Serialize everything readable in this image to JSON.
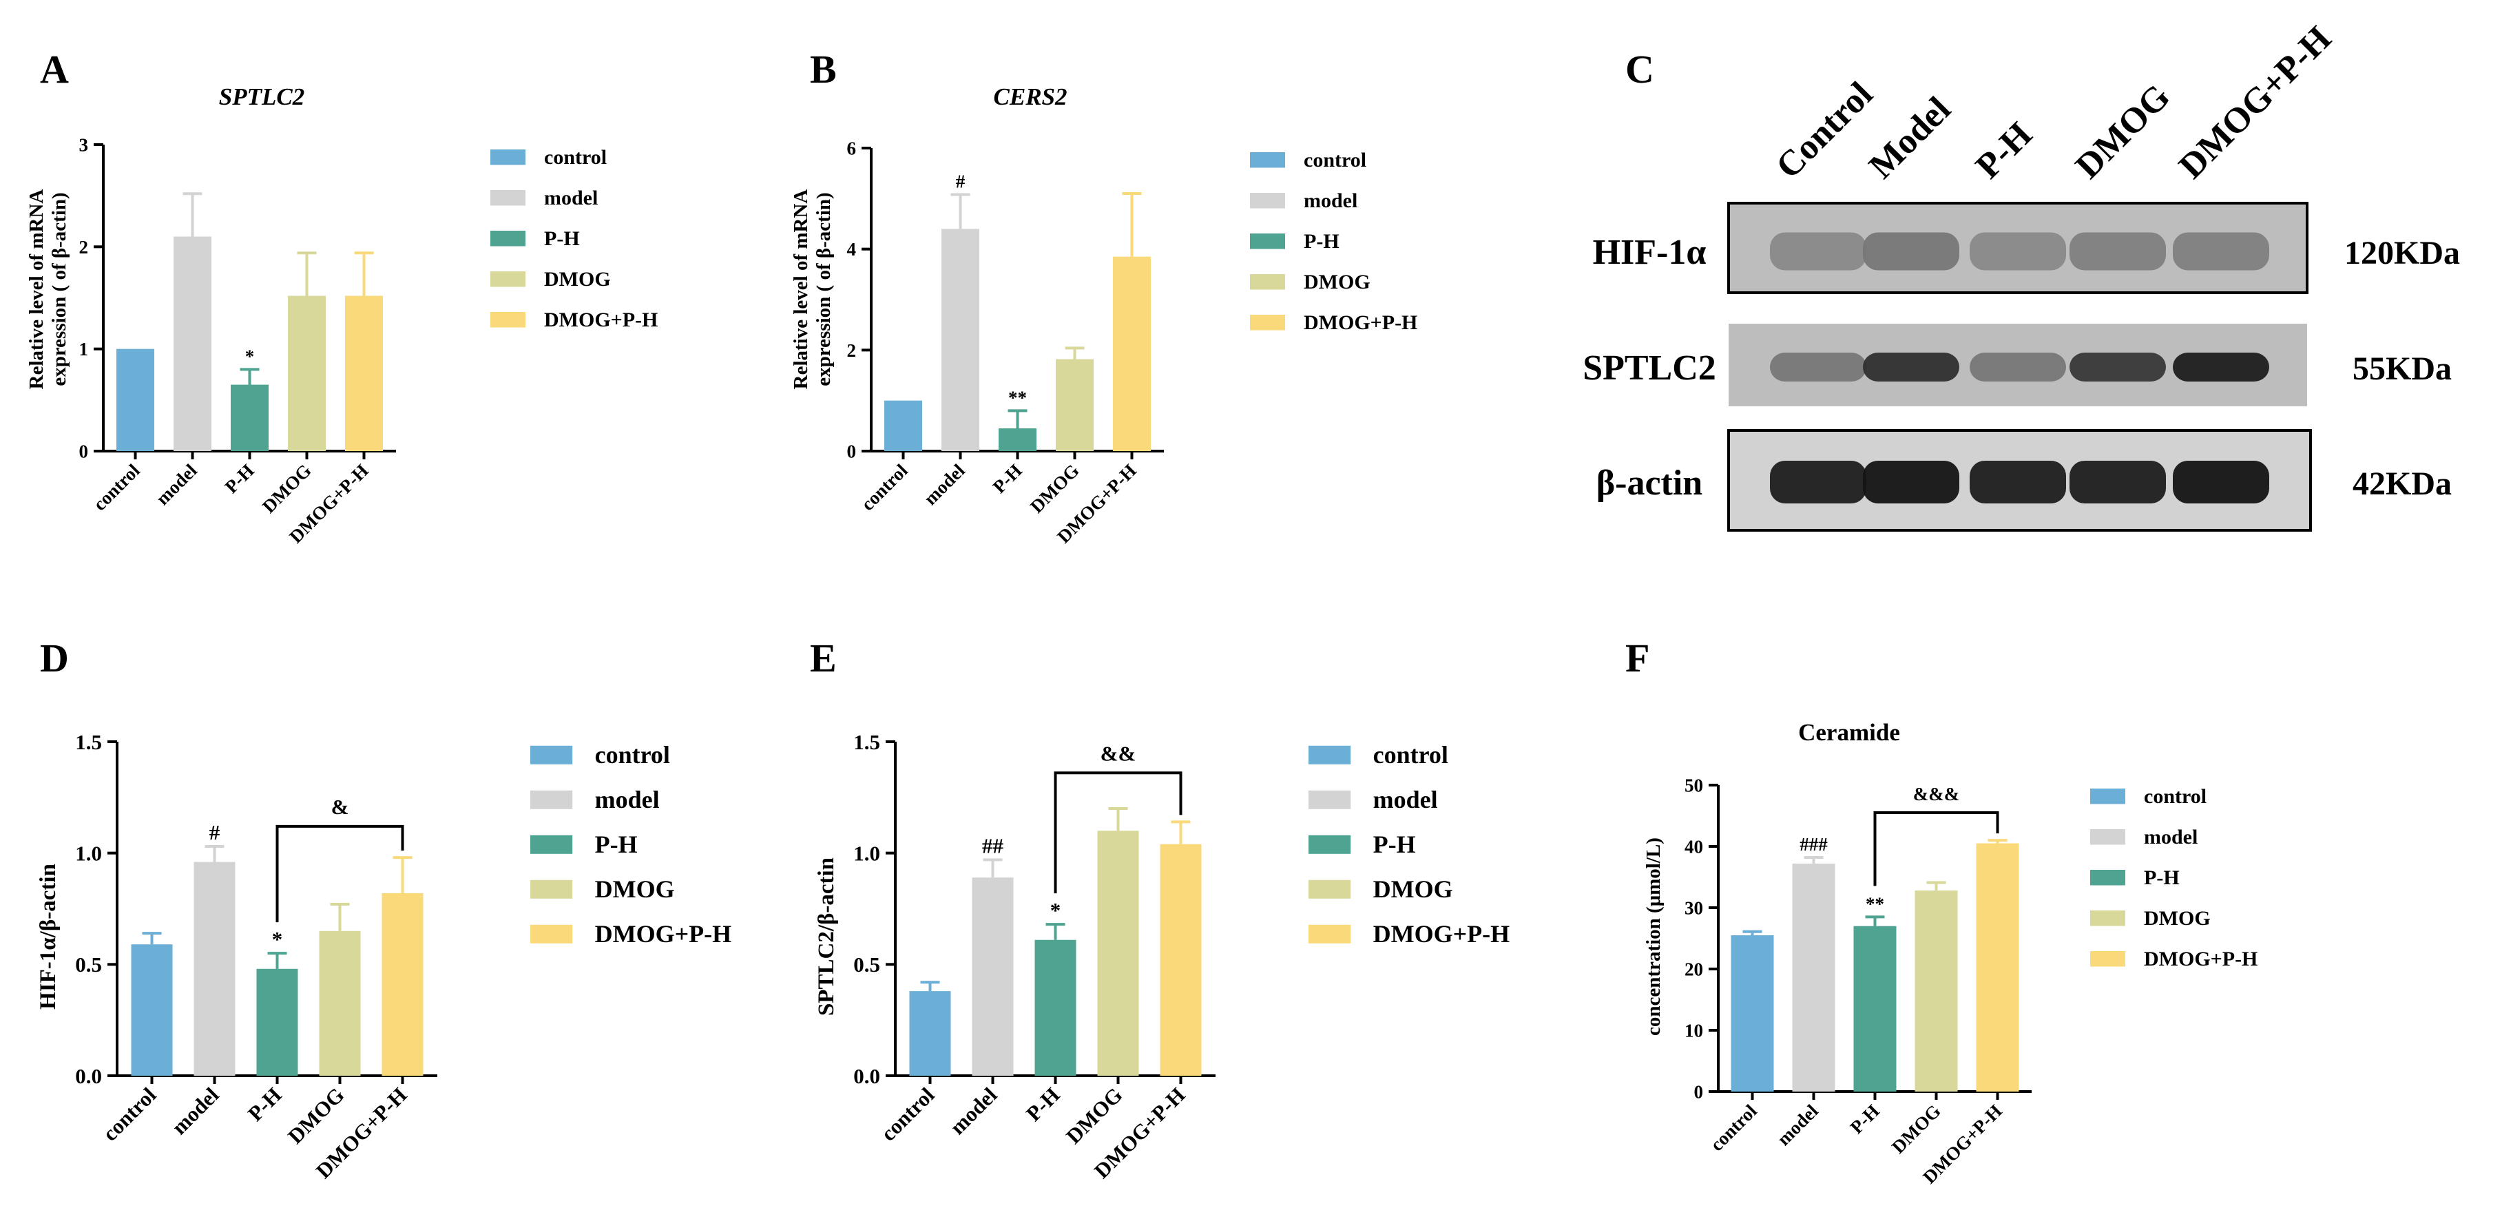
{
  "colors": {
    "control": "#6baed6",
    "model": "#d3d3d3",
    "P-H": "#4ea391",
    "DMOG": "#d8d89a",
    "DMOG+P-H": "#fad97a"
  },
  "chart_data": [
    {
      "panel": "A",
      "type": "bar",
      "title": "SPTLC2",
      "ylabel": [
        "Relative level of mRNA",
        "expression ( of β-actin)"
      ],
      "categories": [
        "control",
        "model",
        "P-H",
        "DMOG",
        "DMOG+P-H"
      ],
      "values": [
        1.0,
        2.1,
        0.65,
        1.52,
        1.52
      ],
      "errors": [
        0,
        0.42,
        0.15,
        0.42,
        0.42
      ],
      "ylim": [
        0,
        3
      ],
      "yticks": [
        "0",
        "1",
        "2",
        "3"
      ],
      "annotations": [
        {
          "index": 2,
          "text": "*"
        }
      ],
      "brackets": [],
      "legend": [
        "control",
        "model",
        "P-H",
        "DMOG",
        "DMOG+P-H"
      ]
    },
    {
      "panel": "B",
      "type": "bar",
      "title": "CERS2",
      "ylabel": [
        "Relative level of mRNA",
        "expression ( of β-actin)"
      ],
      "categories": [
        "control",
        "model",
        "P-H",
        "DMOG",
        "DMOG+P-H"
      ],
      "values": [
        1.0,
        4.4,
        0.45,
        1.82,
        3.85
      ],
      "errors": [
        0,
        0.68,
        0.35,
        0.22,
        1.25
      ],
      "ylim": [
        0,
        6
      ],
      "yticks": [
        "0",
        "2",
        "4",
        "6"
      ],
      "annotations": [
        {
          "index": 1,
          "text": "#"
        },
        {
          "index": 2,
          "text": "**"
        }
      ],
      "brackets": [],
      "legend": [
        "control",
        "model",
        "P-H",
        "DMOG",
        "DMOG+P-H"
      ]
    },
    {
      "panel": "D",
      "type": "bar",
      "title": "",
      "ylabel": [
        "HIF-1α/β-actin"
      ],
      "categories": [
        "control",
        "model",
        "P-H",
        "DMOG",
        "DMOG+P-H"
      ],
      "values": [
        0.59,
        0.96,
        0.48,
        0.65,
        0.82
      ],
      "errors": [
        0.05,
        0.07,
        0.07,
        0.12,
        0.16
      ],
      "ylim": [
        0,
        1.5
      ],
      "yticks": [
        "0.0",
        "0.5",
        "1.0",
        "1.5"
      ],
      "annotations": [
        {
          "index": 1,
          "text": "#"
        },
        {
          "index": 2,
          "text": "*"
        }
      ],
      "brackets": [
        {
          "from": 2,
          "to": 4,
          "y": 1.12,
          "text": "&"
        }
      ],
      "legend": [
        "control",
        "model",
        "P-H",
        "DMOG",
        "DMOG+P-H"
      ]
    },
    {
      "panel": "E",
      "type": "bar",
      "title": "",
      "ylabel": [
        "SPTLC2/β-actin"
      ],
      "categories": [
        "control",
        "model",
        "P-H",
        "DMOG",
        "DMOG+P-H"
      ],
      "values": [
        0.38,
        0.89,
        0.61,
        1.1,
        1.04
      ],
      "errors": [
        0.04,
        0.08,
        0.07,
        0.1,
        0.1
      ],
      "ylim": [
        0,
        1.5
      ],
      "yticks": [
        "0.0",
        "0.5",
        "1.0",
        "1.5"
      ],
      "annotations": [
        {
          "index": 1,
          "text": "##"
        },
        {
          "index": 2,
          "text": "*"
        }
      ],
      "brackets": [
        {
          "from": 2,
          "to": 4,
          "y": 1.36,
          "text": "&&"
        }
      ],
      "legend": [
        "control",
        "model",
        "P-H",
        "DMOG",
        "DMOG+P-H"
      ]
    },
    {
      "panel": "F",
      "type": "bar",
      "title": "Ceramide",
      "ylabel": [
        "concentration (μmol/L)"
      ],
      "categories": [
        "control",
        "model",
        "P-H",
        "DMOG",
        "DMOG+P-H"
      ],
      "values": [
        25.5,
        37.2,
        27.0,
        32.8,
        40.5
      ],
      "errors": [
        0.6,
        1.0,
        1.5,
        1.3,
        0.5
      ],
      "ylim": [
        0,
        50
      ],
      "yticks": [
        "0",
        "10",
        "20",
        "30",
        "40",
        "50"
      ],
      "annotations": [
        {
          "index": 1,
          "text": "###"
        },
        {
          "index": 2,
          "text": "**"
        }
      ],
      "brackets": [
        {
          "from": 2,
          "to": 4,
          "y": 45.5,
          "text": "&&&"
        }
      ],
      "legend": [
        "control",
        "model",
        "P-H",
        "DMOG",
        "DMOG+P-H"
      ]
    }
  ],
  "western_blot": {
    "panel": "C",
    "lanes": [
      "Control",
      "Model",
      "P-H",
      "DMOG",
      "DMOG+P-H"
    ],
    "rows": [
      {
        "protein": "HIF-1α",
        "size": "120KDa",
        "intensity": [
          0.35,
          0.45,
          0.35,
          0.4,
          0.4
        ]
      },
      {
        "protein": "SPTLC2",
        "size": "55KDa",
        "intensity": [
          0.45,
          0.85,
          0.45,
          0.8,
          0.95
        ]
      },
      {
        "protein": "β-actin",
        "size": "42KDa",
        "intensity": [
          0.95,
          1.0,
          0.95,
          0.95,
          1.0
        ]
      }
    ]
  }
}
